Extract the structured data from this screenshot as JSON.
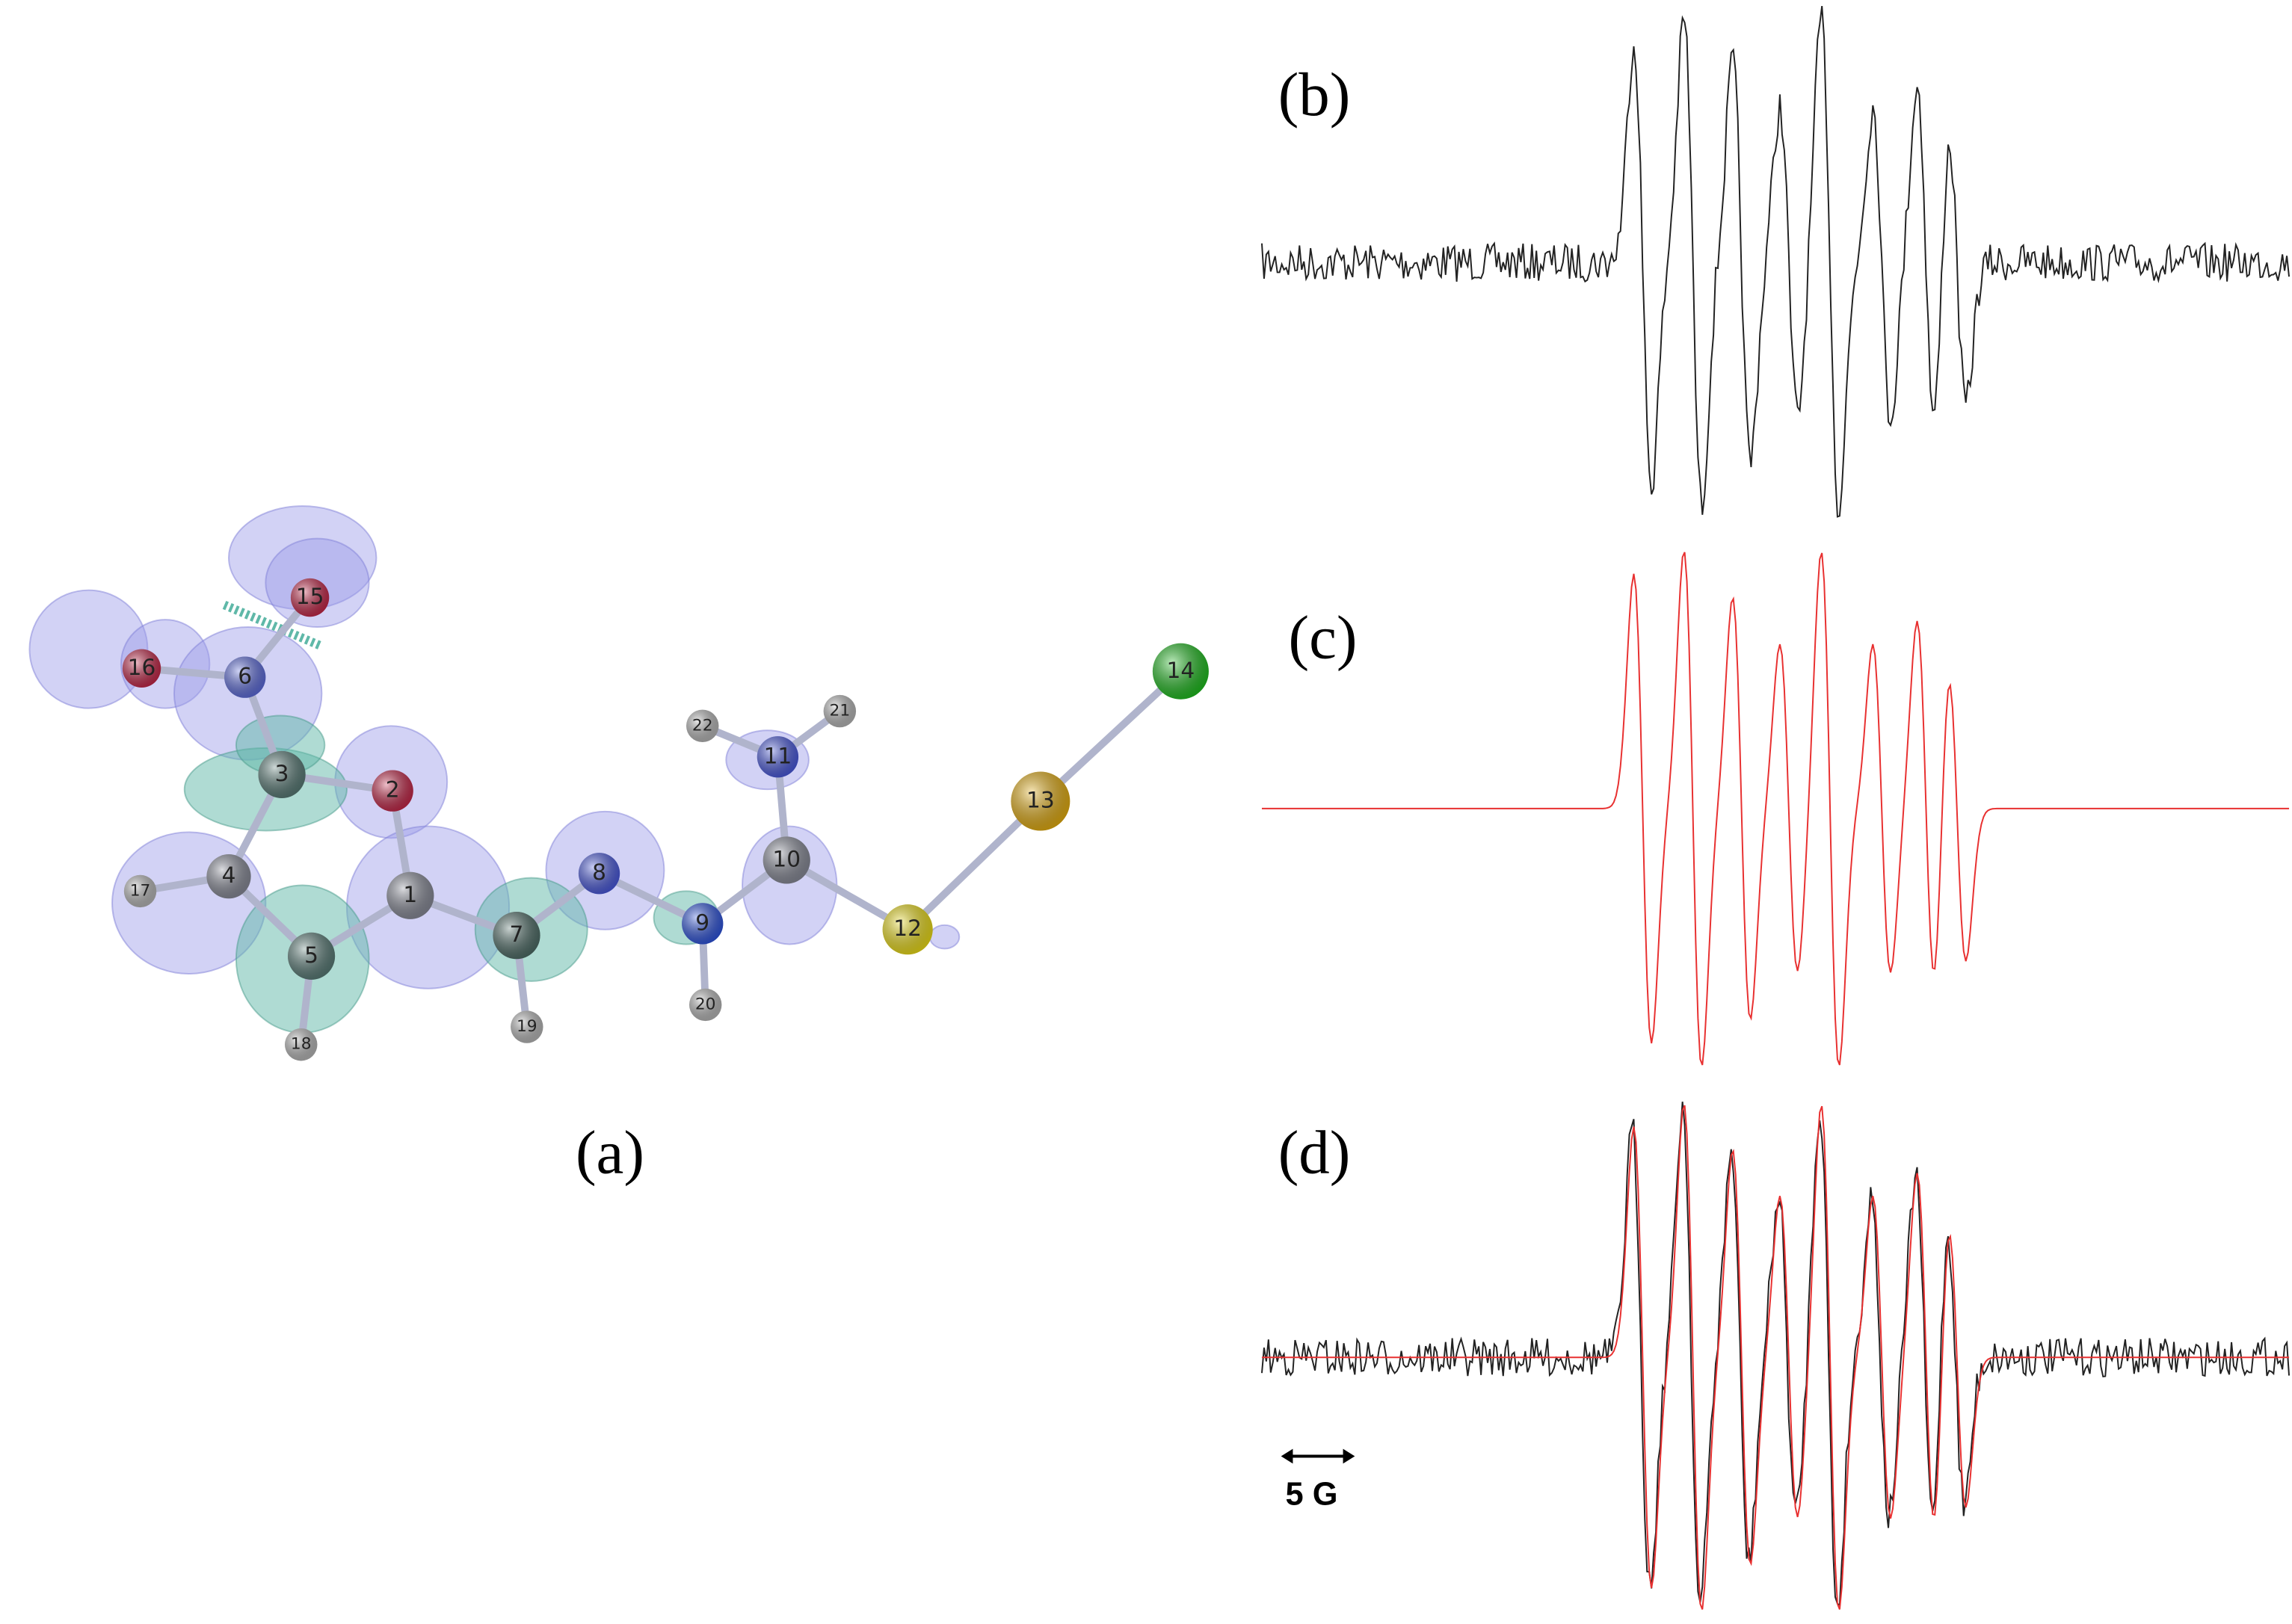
{
  "panels": {
    "a": "(a)",
    "b": "(b)",
    "c": "(c)",
    "d": "(d)"
  },
  "molecule": {
    "atoms": [
      "1",
      "2",
      "3",
      "4",
      "5",
      "6",
      "7",
      "8",
      "9",
      "10",
      "11",
      "12",
      "13",
      "14",
      "15",
      "16",
      "17",
      "18",
      "19",
      "20",
      "21",
      "22"
    ]
  },
  "scale_bar": "5 G"
}
